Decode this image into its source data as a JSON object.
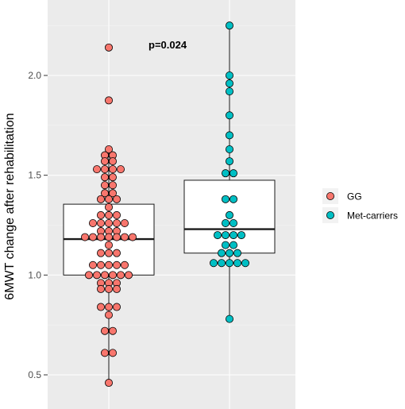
{
  "chart_data": {
    "type": "boxplot-dotplot",
    "ylabel": "6MWT change after rehabilitation",
    "xlabel": "",
    "ylim": [
      0.42,
      2.3
    ],
    "yticks": [
      "0.5",
      "1.0",
      "1.5",
      "2.0"
    ],
    "annotation": "p=0.024",
    "grid": true,
    "legend_position": "right",
    "groups": [
      {
        "name": "GG",
        "color": "#F8766D",
        "box": {
          "q1": 1.0,
          "median": 1.18,
          "q3": 1.355,
          "whisker_low": 0.46,
          "whisker_high": 1.63
        },
        "outliers": [
          1.875,
          2.14
        ],
        "points": [
          2.14,
          1.875,
          1.63,
          1.6,
          1.6,
          1.57,
          1.57,
          1.53,
          1.53,
          1.53,
          1.53,
          1.49,
          1.49,
          1.45,
          1.45,
          1.41,
          1.41,
          1.38,
          1.38,
          1.38,
          1.34,
          1.3,
          1.3,
          1.3,
          1.26,
          1.26,
          1.26,
          1.26,
          1.26,
          1.22,
          1.22,
          1.22,
          1.19,
          1.19,
          1.19,
          1.19,
          1.19,
          1.19,
          1.19,
          1.15,
          1.11,
          1.11,
          1.11,
          1.05,
          1.05,
          1.05,
          1.05,
          1.05,
          1.0,
          1.0,
          1.0,
          1.0,
          1.0,
          1.0,
          0.96,
          0.96,
          0.96,
          0.93,
          0.93,
          0.93,
          0.84,
          0.84,
          0.84,
          0.8,
          0.72,
          0.72,
          0.61,
          0.61,
          0.46
        ]
      },
      {
        "name": "Met-carriers",
        "color": "#00BFC4",
        "box": {
          "q1": 1.11,
          "median": 1.23,
          "q3": 1.475,
          "whisker_low": 0.78,
          "whisker_high": 2.25
        },
        "outliers": [],
        "points": [
          2.25,
          2.0,
          1.96,
          1.92,
          1.8,
          1.7,
          1.63,
          1.57,
          1.51,
          1.51,
          1.38,
          1.38,
          1.3,
          1.26,
          1.26,
          1.2,
          1.2,
          1.2,
          1.2,
          1.15,
          1.15,
          1.11,
          1.11,
          1.11,
          1.06,
          1.06,
          1.06,
          1.06,
          1.06,
          0.78
        ]
      }
    ]
  }
}
